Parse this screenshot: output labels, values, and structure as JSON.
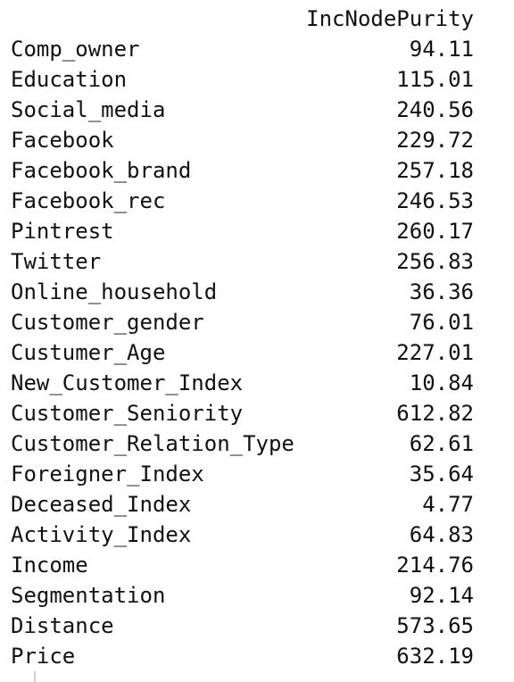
{
  "table": {
    "column_header": "IncNodePurity",
    "rows": [
      {
        "name": "Comp_owner",
        "value": "94.11"
      },
      {
        "name": "Education",
        "value": "115.01"
      },
      {
        "name": "Social_media",
        "value": "240.56"
      },
      {
        "name": "Facebook",
        "value": "229.72"
      },
      {
        "name": "Facebook_brand",
        "value": "257.18"
      },
      {
        "name": "Facebook_rec",
        "value": "246.53"
      },
      {
        "name": "Pintrest",
        "value": "260.17"
      },
      {
        "name": "Twitter",
        "value": "256.83"
      },
      {
        "name": "Online_household",
        "value": "36.36"
      },
      {
        "name": "Customer_gender",
        "value": "76.01"
      },
      {
        "name": "Custumer_Age",
        "value": "227.01"
      },
      {
        "name": "New_Customer_Index",
        "value": "10.84"
      },
      {
        "name": "Customer_Seniority",
        "value": "612.82"
      },
      {
        "name": "Customer_Relation_Type",
        "value": "62.61"
      },
      {
        "name": "Foreigner_Index",
        "value": "35.64"
      },
      {
        "name": "Deceased_Index",
        "value": "4.77"
      },
      {
        "name": "Activity_Index",
        "value": "64.83"
      },
      {
        "name": "Income",
        "value": "214.76"
      },
      {
        "name": "Segmentation",
        "value": "92.14"
      },
      {
        "name": "Distance",
        "value": "573.65"
      },
      {
        "name": "Price",
        "value": "632.19"
      }
    ]
  }
}
